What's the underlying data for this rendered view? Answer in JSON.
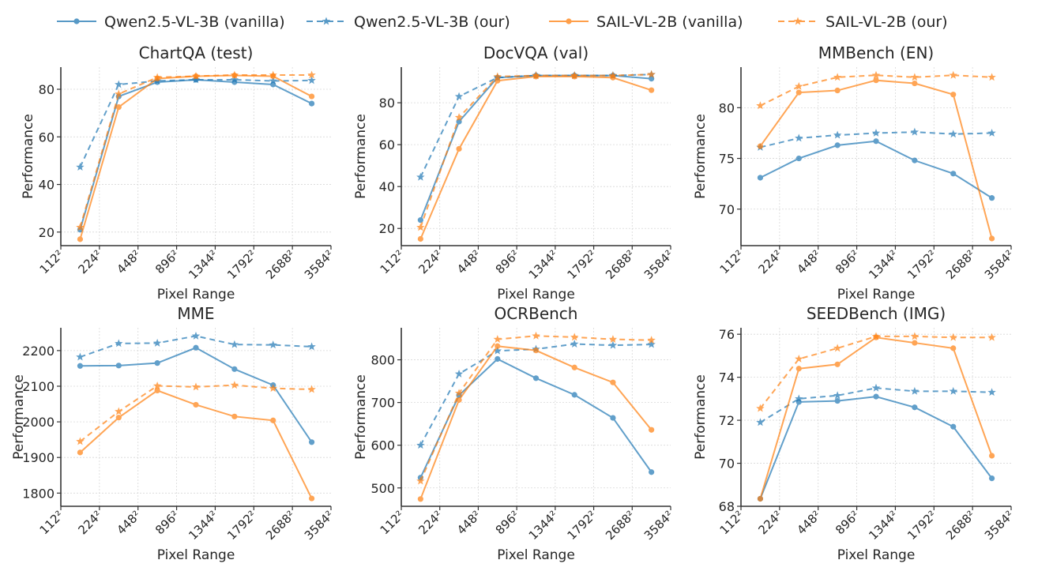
{
  "legend": {
    "placement": "top",
    "entries": [
      {
        "label": "Qwen2.5-VL-3B (vanilla)",
        "color": "#1f77b4",
        "style": "solid",
        "marker": "circle"
      },
      {
        "label": "Qwen2.5-VL-3B (our)",
        "color": "#1f77b4",
        "style": "dashed",
        "marker": "star"
      },
      {
        "label": "SAIL-VL-2B (vanilla)",
        "color": "#ff7f0e",
        "style": "solid",
        "marker": "circle"
      },
      {
        "label": "SAIL-VL-2B (our)",
        "color": "#ff7f0e",
        "style": "dashed",
        "marker": "star"
      }
    ]
  },
  "chart_data": [
    {
      "type": "line",
      "title": "ChartQA (test)",
      "xlabel": "Pixel Range",
      "ylabel": "Performance",
      "x_tick_labels": [
        "112²",
        "224²",
        "448²",
        "896²",
        "1344²",
        "1792²",
        "2688²",
        "3584²"
      ],
      "y_ticks": [
        20,
        40,
        60,
        80
      ],
      "ylim": [
        14.3,
        89.3
      ],
      "grid": true,
      "series": [
        {
          "name": "Qwen2.5-VL-3B (vanilla)",
          "values": [
            21,
            77,
            83,
            84,
            83,
            82,
            74
          ]
        },
        {
          "name": "Qwen2.5-VL-3B (our)",
          "values": [
            47.3,
            82,
            83.5,
            84,
            84,
            83.5,
            83.7
          ]
        },
        {
          "name": "SAIL-VL-2B (vanilla)",
          "values": [
            17,
            72.5,
            84.5,
            85.5,
            85.8,
            85.5,
            77
          ]
        },
        {
          "name": "SAIL-VL-2B (our)",
          "values": [
            22,
            78,
            85,
            85.5,
            86,
            86,
            86
          ]
        }
      ]
    },
    {
      "type": "line",
      "title": "DocVQA (val)",
      "xlabel": "Pixel Range",
      "ylabel": "Performance",
      "x_tick_labels": [
        "112²",
        "224²",
        "448²",
        "896²",
        "1344²",
        "1792²",
        "2688²",
        "3584²"
      ],
      "y_ticks": [
        20,
        40,
        60,
        80
      ],
      "ylim": [
        11.8,
        97
      ],
      "grid": true,
      "series": [
        {
          "name": "Qwen2.5-VL-3B (vanilla)",
          "values": [
            24,
            71,
            92,
            93,
            93,
            93,
            91.5
          ]
        },
        {
          "name": "Qwen2.5-VL-3B (our)",
          "values": [
            44.5,
            83,
            92,
            93,
            93,
            93,
            93.5
          ]
        },
        {
          "name": "SAIL-VL-2B (vanilla)",
          "values": [
            15,
            58,
            90.5,
            92.5,
            92.5,
            92,
            86
          ]
        },
        {
          "name": "SAIL-VL-2B (our)",
          "values": [
            20.5,
            73,
            92.5,
            93,
            93,
            93,
            93.5
          ]
        }
      ]
    },
    {
      "type": "line",
      "title": "MMBench (EN)",
      "xlabel": "Pixel Range",
      "ylabel": "Performance",
      "x_tick_labels": [
        "112²",
        "224²",
        "448²",
        "896²",
        "1344²",
        "1792²",
        "2688²",
        "3584²"
      ],
      "y_ticks": [
        70,
        75,
        80
      ],
      "ylim": [
        66.4,
        84
      ],
      "grid": true,
      "series": [
        {
          "name": "Qwen2.5-VL-3B (vanilla)",
          "values": [
            73.1,
            75.0,
            76.3,
            76.7,
            74.8,
            73.5,
            71.1
          ]
        },
        {
          "name": "Qwen2.5-VL-3B (our)",
          "values": [
            76.1,
            77.0,
            77.3,
            77.5,
            77.6,
            77.4,
            77.5
          ]
        },
        {
          "name": "SAIL-VL-2B (vanilla)",
          "values": [
            76.2,
            81.5,
            81.7,
            82.7,
            82.4,
            81.3,
            67.1
          ]
        },
        {
          "name": "SAIL-VL-2B (our)",
          "values": [
            80.2,
            82.1,
            83.0,
            83.2,
            83.0,
            83.2,
            83.0
          ]
        }
      ]
    },
    {
      "type": "line",
      "title": "MME",
      "xlabel": "Pixel Range",
      "ylabel": "Performance",
      "x_tick_labels": [
        "112²",
        "224²",
        "448²",
        "896²",
        "1344²",
        "1792²",
        "2688²",
        "3584²"
      ],
      "y_ticks": [
        1800,
        1900,
        2000,
        2100,
        2200
      ],
      "ylim": [
        1763,
        2264
      ],
      "grid": true,
      "series": [
        {
          "name": "Qwen2.5-VL-3B (vanilla)",
          "values": [
            2157,
            2158,
            2165,
            2208,
            2148,
            2103,
            1943
          ]
        },
        {
          "name": "Qwen2.5-VL-3B (our)",
          "values": [
            2182,
            2220,
            2221,
            2241,
            2217,
            2216,
            2211
          ]
        },
        {
          "name": "SAIL-VL-2B (vanilla)",
          "values": [
            1914,
            2012,
            2088,
            2048,
            2015,
            2004,
            1785
          ]
        },
        {
          "name": "SAIL-VL-2B (our)",
          "values": [
            1945,
            2029,
            2101,
            2098,
            2103,
            2094,
            2091
          ]
        }
      ]
    },
    {
      "type": "line",
      "title": "OCRBench",
      "xlabel": "Pixel Range",
      "ylabel": "Performance",
      "x_tick_labels": [
        "112²",
        "224²",
        "448²",
        "896²",
        "1344²",
        "1792²",
        "2688²",
        "3584²"
      ],
      "y_ticks": [
        500,
        600,
        700,
        800
      ],
      "ylim": [
        457,
        875
      ],
      "grid": true,
      "series": [
        {
          "name": "Qwen2.5-VL-3B (vanilla)",
          "values": [
            524,
            717,
            802,
            757,
            718,
            664,
            537
          ]
        },
        {
          "name": "Qwen2.5-VL-3B (our)",
          "values": [
            600,
            767,
            821,
            825,
            837,
            834,
            836
          ]
        },
        {
          "name": "SAIL-VL-2B (vanilla)",
          "values": [
            474,
            706,
            832,
            822,
            782,
            747,
            636
          ]
        },
        {
          "name": "SAIL-VL-2B (our)",
          "values": [
            516,
            722,
            848,
            856,
            853,
            848,
            846
          ]
        }
      ]
    },
    {
      "type": "line",
      "title": "SEEDBench (IMG)",
      "xlabel": "Pixel Range",
      "ylabel": "Performance",
      "x_tick_labels": [
        "112²",
        "224²",
        "448²",
        "896²",
        "1344²",
        "1792²",
        "2688²",
        "3584²"
      ],
      "y_ticks": [
        68,
        70,
        72,
        74,
        76
      ],
      "ylim": [
        68,
        76.3
      ],
      "grid": true,
      "series": [
        {
          "name": "Qwen2.5-VL-3B (vanilla)",
          "values": [
            68.35,
            72.85,
            72.9,
            73.1,
            72.6,
            71.7,
            69.3
          ]
        },
        {
          "name": "Qwen2.5-VL-3B (our)",
          "values": [
            71.9,
            73.0,
            73.15,
            73.5,
            73.35,
            73.35,
            73.3
          ]
        },
        {
          "name": "SAIL-VL-2B (vanilla)",
          "values": [
            68.35,
            74.4,
            74.6,
            75.85,
            75.6,
            75.35,
            70.35
          ]
        },
        {
          "name": "SAIL-VL-2B (our)",
          "values": [
            72.55,
            74.85,
            75.35,
            75.9,
            75.9,
            75.85,
            75.85
          ]
        }
      ]
    }
  ]
}
